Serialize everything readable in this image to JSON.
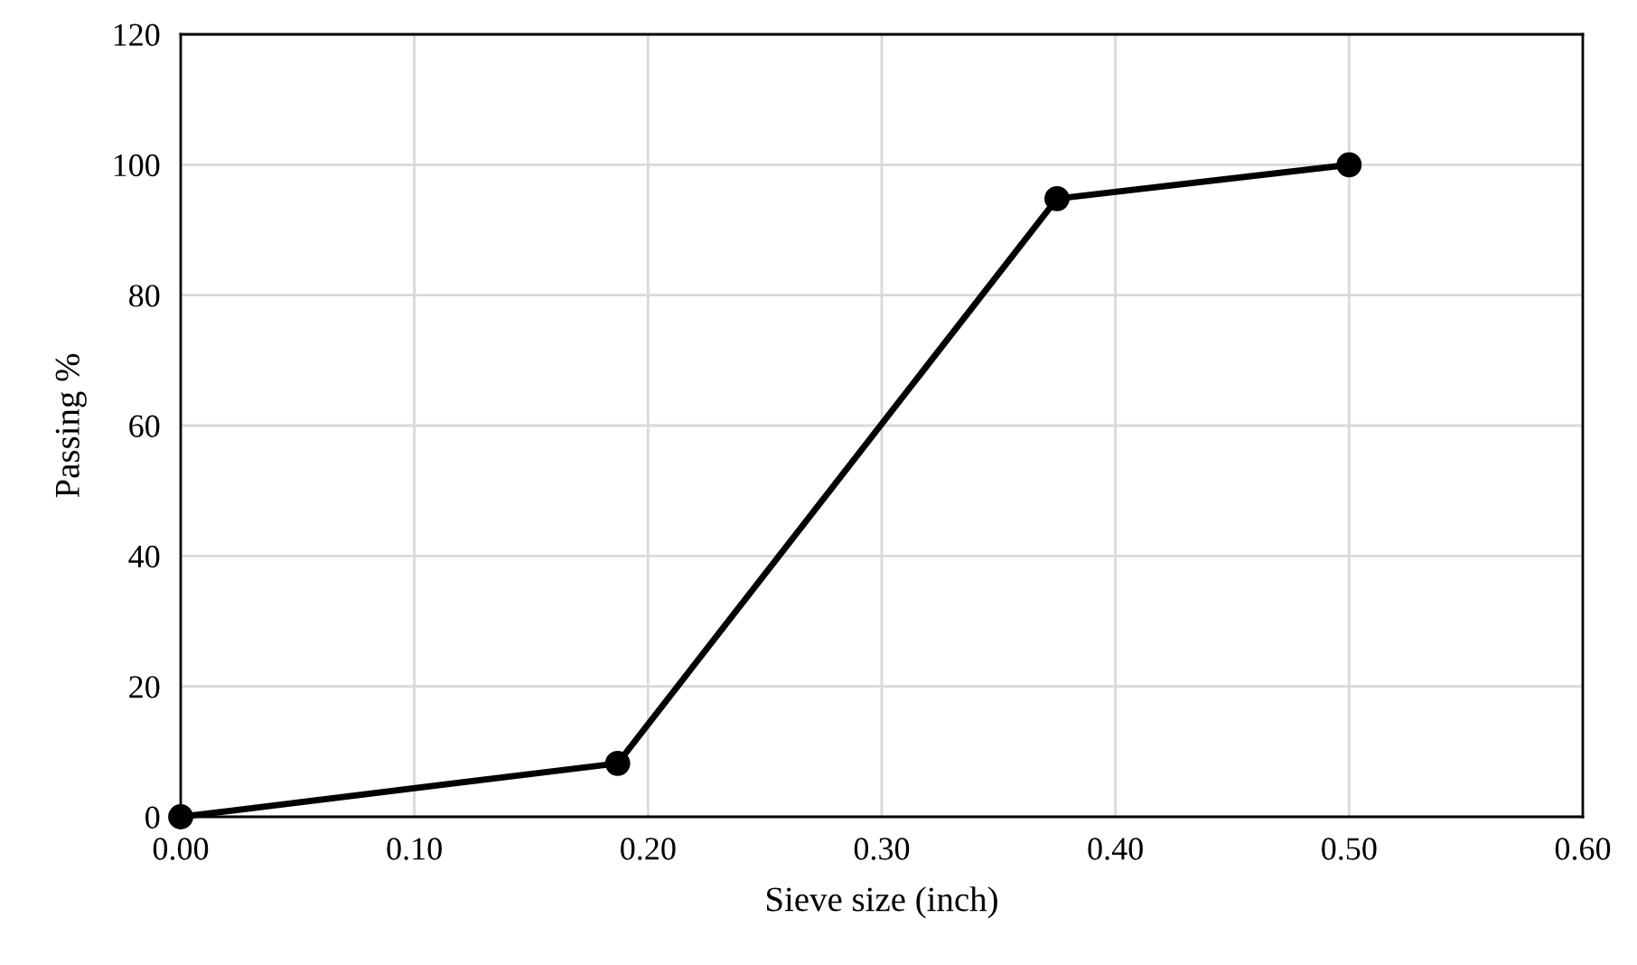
{
  "chart_data": {
    "type": "line",
    "xlabel": "Sieve size (inch)",
    "ylabel": "Passing %",
    "x": [
      0,
      0.187,
      0.375,
      0.5
    ],
    "series": [
      {
        "color": "#000000",
        "values": [
          0,
          8.2,
          94.8,
          100
        ]
      }
    ],
    "xlim": [
      0,
      0.6
    ],
    "xticks": [
      {
        "value": 0,
        "label": "0.00"
      },
      {
        "value": 0.1,
        "label": "0.10"
      },
      {
        "value": 0.2,
        "label": "0.20"
      },
      {
        "value": 0.3,
        "label": "0.30"
      },
      {
        "value": 0.4,
        "label": "0.40"
      },
      {
        "value": 0.5,
        "label": "0.50"
      },
      {
        "value": 0.6,
        "label": "0.60"
      }
    ],
    "ylim": [
      0,
      120
    ],
    "yticks": [
      0,
      20,
      40,
      60,
      80,
      100,
      120
    ],
    "grid": true,
    "marker": "circle",
    "line_style": "solid"
  }
}
